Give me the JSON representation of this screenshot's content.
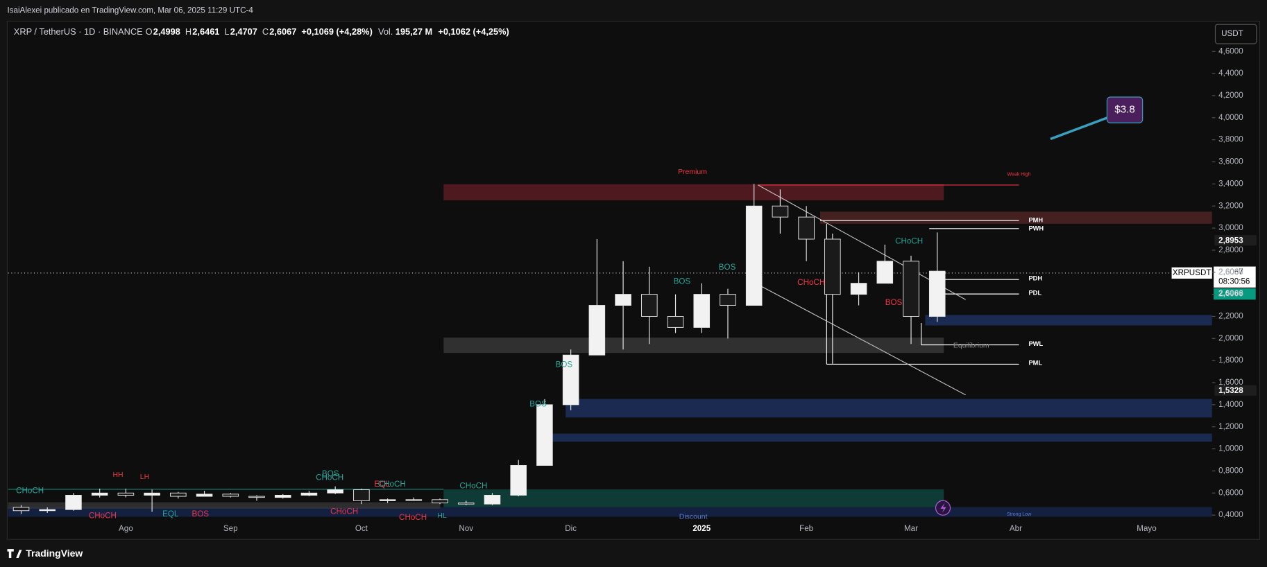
{
  "header": {
    "publisher": "IsaiAlexei publicado en TradingView.com, Mar 06, 2025 11:29 UTC-4",
    "brand": "TradingView"
  },
  "legend": {
    "symbol": "XRP / TetherUS · 1D · BINANCE",
    "items": [
      {
        "label": "O",
        "value": "2,4998"
      },
      {
        "label": "H",
        "value": "2,6461"
      },
      {
        "label": "L",
        "value": "2,4707"
      },
      {
        "label": "C",
        "value": "2,6067"
      }
    ],
    "change": "+0,1069 (+4,28%)",
    "volume_label": "Vol.",
    "volume": "195,27 M",
    "volume_change": "+0,1062 (+4,25%)"
  },
  "price_scale": {
    "currency": "USDT",
    "tag_high": "2,8953",
    "symbol_tag": "XRPUSDT",
    "last_price": "2,6067",
    "countdown": "08:30:56",
    "bid": "2,6066",
    "tag_low": "1,5328"
  },
  "annotations": [
    "Premium",
    "Weak High",
    "PMH",
    "PWH",
    "PDH",
    "PDL",
    "PWL",
    "PML",
    "Equilibrium",
    "Discount",
    "Strong Low",
    "$3.8",
    "CHoCH",
    "CHoCH",
    "BOS",
    "BOS",
    "BOS",
    "BOS",
    "BOS",
    "CHoCH",
    "CHoCH",
    "HH",
    "LH",
    "CHoCH",
    "EQL",
    "BOS",
    "BOS",
    "CHoCH",
    "CHoCH",
    "EQL",
    "CHoCH",
    "CHoCH",
    "HL"
  ],
  "chart_data": {
    "type": "candlestick",
    "categories": [
      null,
      null,
      null,
      null,
      "Ago",
      null,
      null,
      null,
      "Sep",
      null,
      null,
      null,
      null,
      "Oct",
      null,
      null,
      null,
      "Nov",
      null,
      null,
      null,
      "Dic",
      null,
      null,
      null,
      null,
      "2025",
      null,
      null,
      null,
      "Feb",
      null,
      null,
      null,
      "Mar",
      null,
      null,
      null,
      "Abr",
      null,
      null,
      null,
      null,
      "Mayo",
      null,
      null
    ],
    "open": [
      0.47,
      0.44,
      0.45,
      0.58,
      0.6,
      0.58,
      0.6,
      0.57,
      0.59,
      0.57,
      0.56,
      0.58,
      0.6,
      0.63,
      0.53,
      0.54,
      0.54,
      0.51,
      0.5,
      0.58,
      0.85,
      1.4,
      1.85,
      2.3,
      2.4,
      2.2,
      2.1,
      2.4,
      2.3,
      3.2,
      3.1,
      2.9,
      2.4,
      2.5,
      2.7,
      2.2,
      null,
      null,
      null,
      null,
      null,
      null,
      null,
      null,
      null,
      null
    ],
    "high": [
      0.49,
      0.47,
      0.6,
      0.64,
      0.64,
      0.63,
      0.61,
      0.62,
      0.6,
      0.58,
      0.59,
      0.62,
      0.66,
      0.64,
      0.55,
      0.56,
      0.55,
      0.53,
      0.6,
      0.9,
      1.45,
      1.9,
      2.9,
      2.7,
      2.65,
      2.4,
      2.5,
      2.45,
      3.4,
      3.35,
      3.2,
      2.95,
      2.6,
      2.85,
      2.75,
      2.96,
      null,
      null,
      null,
      null,
      null,
      null,
      null,
      null,
      null,
      null
    ],
    "low": [
      0.41,
      0.42,
      0.44,
      0.56,
      0.56,
      0.43,
      0.55,
      0.57,
      0.56,
      0.53,
      0.55,
      0.57,
      0.59,
      0.5,
      0.51,
      0.53,
      0.5,
      0.49,
      0.49,
      0.57,
      0.85,
      1.35,
      1.85,
      1.9,
      1.95,
      2.05,
      2.05,
      2.0,
      2.3,
      2.95,
      2.7,
      1.77,
      2.3,
      2.5,
      1.95,
      2.15,
      null,
      null,
      null,
      null,
      null,
      null,
      null,
      null,
      null,
      null
    ],
    "close": [
      0.44,
      0.45,
      0.58,
      0.6,
      0.58,
      0.6,
      0.57,
      0.59,
      0.57,
      0.56,
      0.58,
      0.6,
      0.63,
      0.53,
      0.54,
      0.54,
      0.51,
      0.5,
      0.58,
      0.85,
      1.4,
      1.85,
      2.3,
      2.4,
      2.2,
      2.1,
      2.4,
      2.3,
      3.2,
      3.1,
      2.9,
      2.4,
      2.5,
      2.7,
      2.2,
      2.61,
      null,
      null,
      null,
      null,
      null,
      null,
      null,
      null,
      null,
      null
    ],
    "up_color": "#f2f2f2",
    "down_color": "#1a1a1a",
    "wick_color": "#e6e6e6",
    "ylim": [
      0.18,
      4.86
    ],
    "yticks": [
      {
        "value": 0.4,
        "label": "0,4000"
      },
      {
        "value": 0.6,
        "label": "0,6000"
      },
      {
        "value": 0.8,
        "label": "0,8000"
      },
      {
        "value": 1.0,
        "label": "1,0000"
      },
      {
        "value": 1.2,
        "label": "1,2000"
      },
      {
        "value": 1.4,
        "label": "1,4000"
      },
      {
        "value": 1.6,
        "label": "1,6000"
      },
      {
        "value": 1.8,
        "label": "1,8000"
      },
      {
        "value": 2.0,
        "label": "2,0000"
      },
      {
        "value": 2.2,
        "label": "2,2000"
      },
      {
        "value": 2.4,
        "label": "2,4000"
      },
      {
        "value": 2.6,
        "label": "2,6000"
      },
      {
        "value": 2.8,
        "label": "2,8000"
      },
      {
        "value": 3.0,
        "label": "3,0000"
      },
      {
        "value": 3.2,
        "label": "3,2000"
      },
      {
        "value": 3.4,
        "label": "3,4000"
      },
      {
        "value": 3.6,
        "label": "3,6000"
      },
      {
        "value": 3.8,
        "label": "3,8000"
      },
      {
        "value": 4.0,
        "label": "4,0000"
      },
      {
        "value": 4.2,
        "label": "4,2000"
      },
      {
        "value": 4.4,
        "label": "4,4000"
      },
      {
        "value": 4.6,
        "label": "4,6000"
      }
    ],
    "grid": false
  }
}
